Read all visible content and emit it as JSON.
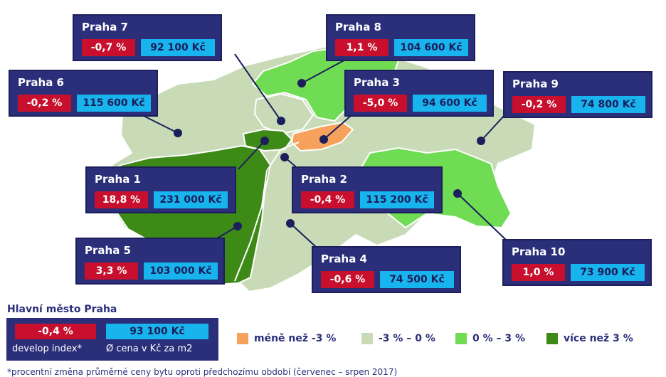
{
  "colors": {
    "decline_gt3": "#f6a25c",
    "decline_0_3": "#c8dbb6",
    "growth_0_3": "#6fdc54",
    "growth_gt3": "#3e8a17",
    "card_bg": "#2b2f7a",
    "change_bg": "#c8102e",
    "price_bg": "#18b4ee"
  },
  "districts": [
    {
      "name": "Praha 7",
      "change": "-0,7 %",
      "price": "92 100 Kč"
    },
    {
      "name": "Praha 8",
      "change": "1,1 %",
      "price": "104 600 Kč"
    },
    {
      "name": "Praha 6",
      "change": "-0,2 %",
      "price": "115 600 Kč"
    },
    {
      "name": "Praha 3",
      "change": "-5,0 %",
      "price": "94 600 Kč"
    },
    {
      "name": "Praha 9",
      "change": "-0,2 %",
      "price": "74 800 Kč"
    },
    {
      "name": "Praha 1",
      "change": "18,8 %",
      "price": "231 000 Kč"
    },
    {
      "name": "Praha 2",
      "change": "-0,4 %",
      "price": "115 200 Kč"
    },
    {
      "name": "Praha 5",
      "change": "3,3 %",
      "price": "103 000 Kč"
    },
    {
      "name": "Praha 4",
      "change": "-0,6 %",
      "price": "74 500 Kč"
    },
    {
      "name": "Praha 10",
      "change": "1,0 %",
      "price": "73 900 Kč"
    }
  ],
  "city": {
    "title": "Hlavní město Praha",
    "change": "-0,4 %",
    "price": "93 100 Kč",
    "change_label": "develop index*",
    "price_label": "Ø cena v Kč za m2"
  },
  "legend": [
    {
      "label": "méně než -3 %",
      "color": "#f6a25c"
    },
    {
      "label": "-3 % – 0 %",
      "color": "#c8dbb6"
    },
    {
      "label": "0 % – 3 %",
      "color": "#6fdc54"
    },
    {
      "label": "více než 3 %",
      "color": "#3e8a17"
    }
  ],
  "footnote": "*procentní změna průměrné ceny bytu oproti předchozímu období (červenec – srpen 2017)"
}
